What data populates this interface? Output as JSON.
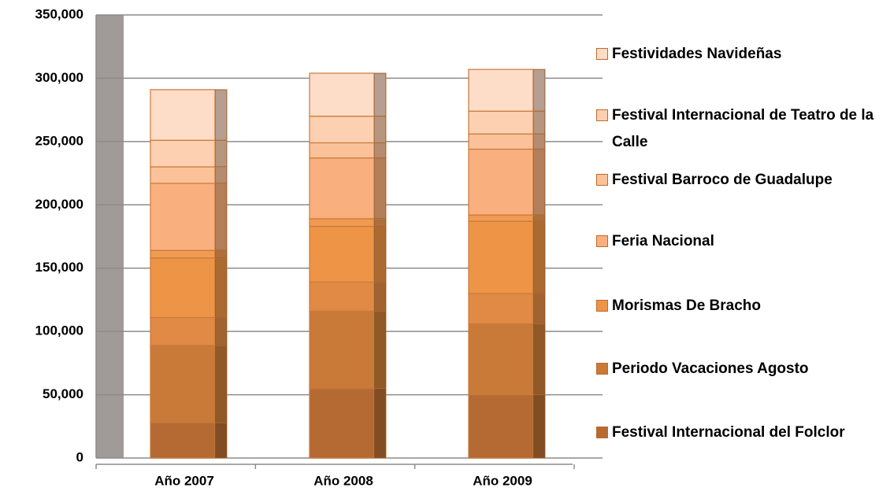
{
  "chart_data": {
    "type": "bar",
    "stacked": true,
    "categories": [
      "Año 2007",
      "Año 2008",
      "Año 2009"
    ],
    "series": [
      {
        "name": "Festival Internacional del Folclor",
        "color": "#b46a32",
        "values": [
          28000,
          55000,
          50000
        ]
      },
      {
        "name": "Periodo Vacaciones Agosto",
        "color": "#c97a38",
        "values": [
          61000,
          61000,
          56000
        ]
      },
      {
        "color": "#e08a45",
        "values": [
          22000,
          23000,
          24000
        ]
      },
      {
        "name": "Morismas De Bracho",
        "color": "#ed9446",
        "values": [
          47000,
          44000,
          57000
        ]
      },
      {
        "color": "#f09a52",
        "values": [
          6000,
          6000,
          5000
        ]
      },
      {
        "name": "Feria Nacional",
        "color": "#f9b07e",
        "values": [
          53000,
          48000,
          52000
        ]
      },
      {
        "name": "Festival Barroco de Guadalupe",
        "color": "#fbc29a",
        "values": [
          13000,
          12000,
          12000
        ]
      },
      {
        "name": "Festival Internacional de Teatro de la Calle",
        "color": "#fcd0b0",
        "values": [
          21000,
          21000,
          18000
        ]
      },
      {
        "name": "Festividades Navideñas",
        "color": "#fddcc8",
        "values": [
          40000,
          34000,
          33000
        ]
      }
    ],
    "ylim": [
      0,
      350000
    ],
    "yticks": [
      0,
      {
        "value": 50000,
        "label": "50,000"
      },
      {
        "value": 100000,
        "label": "100,000"
      },
      {
        "value": 150000,
        "label": "150,000"
      },
      {
        "value": 200000,
        "label": "200,000"
      },
      {
        "value": 250000,
        "label": "250,000"
      },
      {
        "value": 300000,
        "label": "300,000"
      },
      {
        "value": 350000,
        "label": "350,000"
      }
    ],
    "grid": true,
    "legend": "right"
  }
}
